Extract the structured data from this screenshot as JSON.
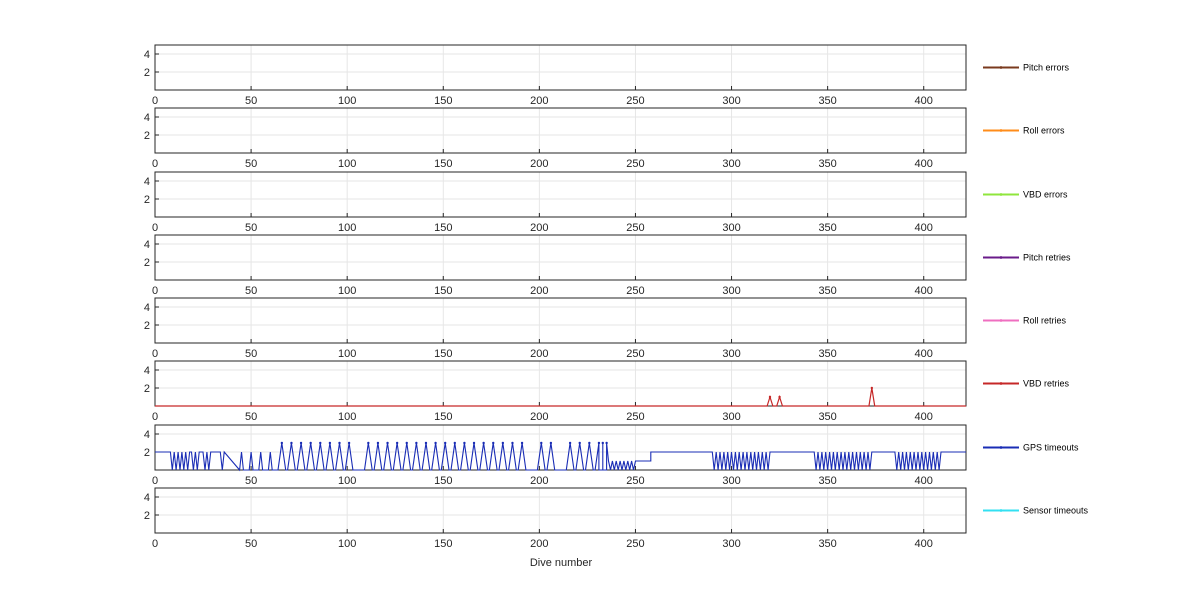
{
  "chart_data": {
    "type": "line",
    "xlabel": "Dive number",
    "xlim": [
      0,
      422
    ],
    "ylim": [
      0,
      5
    ],
    "xticks": [
      0,
      50,
      100,
      150,
      200,
      250,
      300,
      350,
      400
    ],
    "yticks": [
      2,
      4
    ],
    "grid": true,
    "legend_position": "right",
    "series": [
      {
        "name": "Pitch errors",
        "color": "#7a3a1e",
        "segments": []
      },
      {
        "name": "Roll errors",
        "color": "#ff8c1a",
        "segments": []
      },
      {
        "name": "VBD errors",
        "color": "#8fe63c",
        "segments": []
      },
      {
        "name": "Pitch retries",
        "color": "#6a1b8a",
        "segments": []
      },
      {
        "name": "Roll retries",
        "color": "#ef6fc0",
        "segments": []
      },
      {
        "name": "VBD retries",
        "color": "#c62828",
        "segments": [
          {
            "x": [
              0,
              320,
              318,
              320,
              322,
              0
            ],
            "y": [
              0,
              0,
              0,
              1,
              0,
              0
            ]
          }
        ],
        "peaks": [
          [
            320,
            1
          ],
          [
            325,
            1
          ],
          [
            373,
            2
          ]
        ]
      },
      {
        "name": "GPS timeouts",
        "color": "#1a2db5",
        "base_level": 2,
        "drops": [
          9,
          11,
          13,
          15,
          17,
          20,
          22,
          26,
          28
        ],
        "peaks3": [
          66,
          71,
          76,
          81,
          86,
          91,
          96,
          101,
          111,
          116,
          121,
          126,
          131,
          136,
          141,
          146,
          151,
          156,
          161,
          166,
          171,
          176,
          181,
          186,
          191,
          201,
          206,
          216,
          221,
          226,
          231,
          233,
          235
        ],
        "low_zone": [
          [
            236,
            250,
            1
          ],
          [
            250,
            258,
            1
          ]
        ],
        "oscillate": [
          [
            290,
            320
          ],
          [
            343,
            372
          ],
          [
            385,
            408
          ]
        ],
        "flat2": [
          [
            258,
            290
          ],
          [
            320,
            343
          ],
          [
            372,
            385
          ],
          [
            408,
            422
          ]
        ]
      },
      {
        "name": "Sensor timeouts",
        "color": "#33e0f2",
        "segments": []
      }
    ]
  }
}
